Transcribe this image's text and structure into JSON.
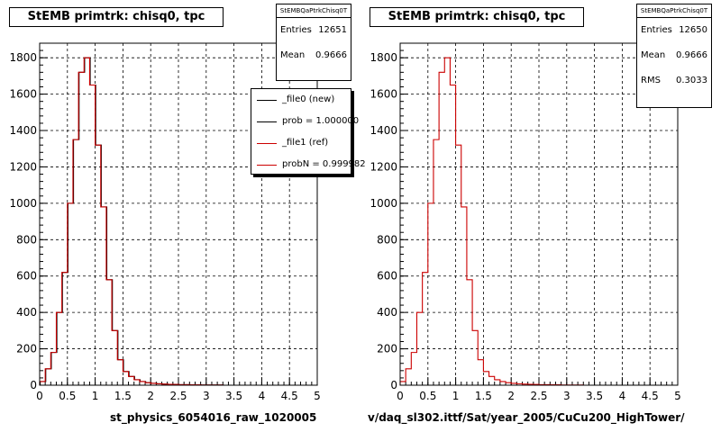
{
  "chart_data": [
    {
      "type": "bar",
      "title": "StEMB primtrk: chisq0, tpc",
      "xlabel": "st_physics_6054016_raw_1020005",
      "xlim": [
        0,
        5
      ],
      "ylim": [
        0,
        1880
      ],
      "xticks": [
        "0",
        "0.5",
        "1",
        "1.5",
        "2",
        "2.5",
        "3",
        "3.5",
        "4",
        "4.5",
        "5"
      ],
      "yticks": [
        "0",
        "200",
        "400",
        "600",
        "800",
        "1000",
        "1200",
        "1400",
        "1600",
        "1800"
      ],
      "grid": true,
      "bin_width": 0.1,
      "series": [
        {
          "name": "_file0 (new)",
          "color": "#000000",
          "values": [
            20,
            90,
            180,
            400,
            620,
            1000,
            1350,
            1720,
            1800,
            1650,
            1320,
            980,
            580,
            300,
            140,
            75,
            48,
            30,
            20,
            14,
            10,
            8,
            6,
            5,
            4,
            3,
            3,
            2,
            2,
            1,
            1,
            1,
            1,
            0,
            0,
            0,
            0,
            0,
            0,
            0,
            0,
            0,
            0,
            0,
            0,
            0,
            0,
            0,
            0,
            0
          ]
        },
        {
          "name": "_file1 (ref)",
          "color": "#cc0000",
          "values": [
            20,
            90,
            180,
            400,
            620,
            1000,
            1350,
            1720,
            1800,
            1650,
            1320,
            980,
            580,
            300,
            140,
            75,
            48,
            30,
            20,
            14,
            10,
            8,
            6,
            5,
            4,
            3,
            3,
            2,
            2,
            1,
            1,
            1,
            1,
            0,
            0,
            0,
            0,
            0,
            0,
            0,
            0,
            0,
            0,
            0,
            0,
            0,
            0,
            0,
            0,
            0
          ]
        }
      ],
      "stats": {
        "title": "StEMBQaPtrkChisq0T",
        "entries_label": "Entries",
        "entries": "12651",
        "mean_label": "Mean",
        "mean": "0.9666"
      },
      "legend": [
        {
          "label": "_file0 (new)",
          "color": "#000000"
        },
        {
          "label": "prob = 1.000000",
          "color": "#000000"
        },
        {
          "label": "_file1 (ref)",
          "color": "#cc0000"
        },
        {
          "label": "probN = 0.999982",
          "color": "#cc0000"
        }
      ]
    },
    {
      "type": "bar",
      "title": "StEMB primtrk: chisq0, tpc",
      "xlabel": "v/daq_sl302.ittf/Sat/year_2005/CuCu200_HighTower/",
      "xlim": [
        0,
        5
      ],
      "ylim": [
        0,
        1880
      ],
      "xticks": [
        "0",
        "0.5",
        "1",
        "1.5",
        "2",
        "2.5",
        "3",
        "3.5",
        "4",
        "4.5",
        "5"
      ],
      "yticks": [
        "0",
        "200",
        "400",
        "600",
        "800",
        "1000",
        "1200",
        "1400",
        "1600",
        "1800"
      ],
      "grid": true,
      "bin_width": 0.1,
      "series": [
        {
          "color": "#cc0000",
          "values": [
            20,
            90,
            180,
            400,
            620,
            1000,
            1350,
            1720,
            1800,
            1650,
            1320,
            980,
            580,
            300,
            140,
            75,
            48,
            30,
            20,
            14,
            10,
            8,
            6,
            5,
            4,
            3,
            3,
            2,
            2,
            1,
            1,
            1,
            1,
            0,
            0,
            0,
            0,
            0,
            0,
            0,
            0,
            0,
            0,
            0,
            0,
            0,
            0,
            0,
            0,
            0
          ]
        }
      ],
      "stats": {
        "title": "StEMBQaPtrkChisq0T",
        "entries_label": "Entries",
        "entries": "12650",
        "mean_label": "Mean",
        "mean": "0.9666",
        "rms_label": "RMS",
        "rms": "0.3033"
      }
    }
  ]
}
